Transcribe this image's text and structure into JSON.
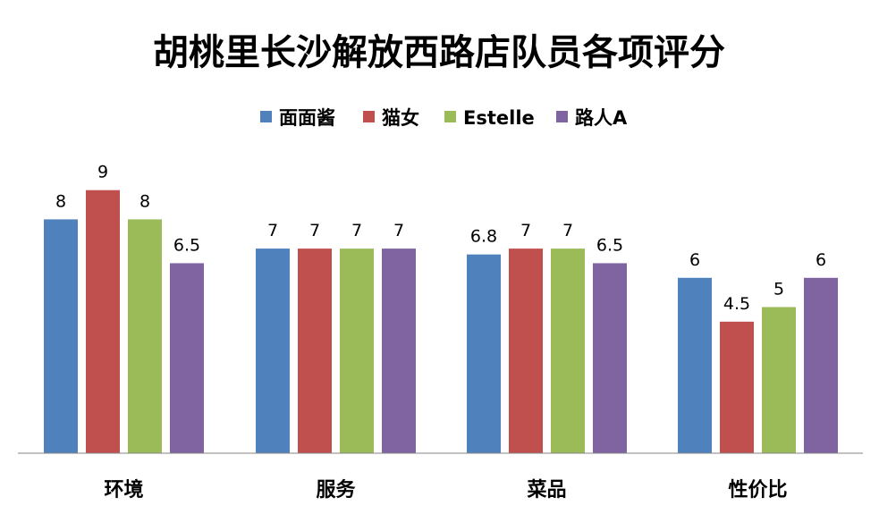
{
  "chart_data": {
    "type": "bar",
    "title": "胡桃里长沙解放西路店队员各项评分",
    "xlabel": "",
    "ylabel": "",
    "categories": [
      "环境",
      "服务",
      "菜品",
      "性价比"
    ],
    "series": [
      {
        "name": "面面酱",
        "color": "#4F81BD",
        "values": [
          8,
          7,
          6.8,
          6
        ]
      },
      {
        "name": "猫女",
        "color": "#C0504D",
        "values": [
          9,
          7,
          7,
          4.5
        ]
      },
      {
        "name": "Estelle",
        "color": "#9BBB59",
        "values": [
          8,
          7,
          7,
          5
        ]
      },
      {
        "name": "路人A",
        "color": "#8064A2",
        "values": [
          6.5,
          7,
          6.5,
          6
        ]
      }
    ],
    "value_labels": [
      [
        "8",
        "7",
        "6.8",
        "6"
      ],
      [
        "9",
        "7",
        "7",
        "4.5"
      ],
      [
        "8",
        "7",
        "7",
        "5"
      ],
      [
        "6.5",
        "7",
        "6.5",
        "6"
      ]
    ],
    "ylim": [
      0,
      9
    ],
    "grid": false,
    "legend_position": "top"
  }
}
